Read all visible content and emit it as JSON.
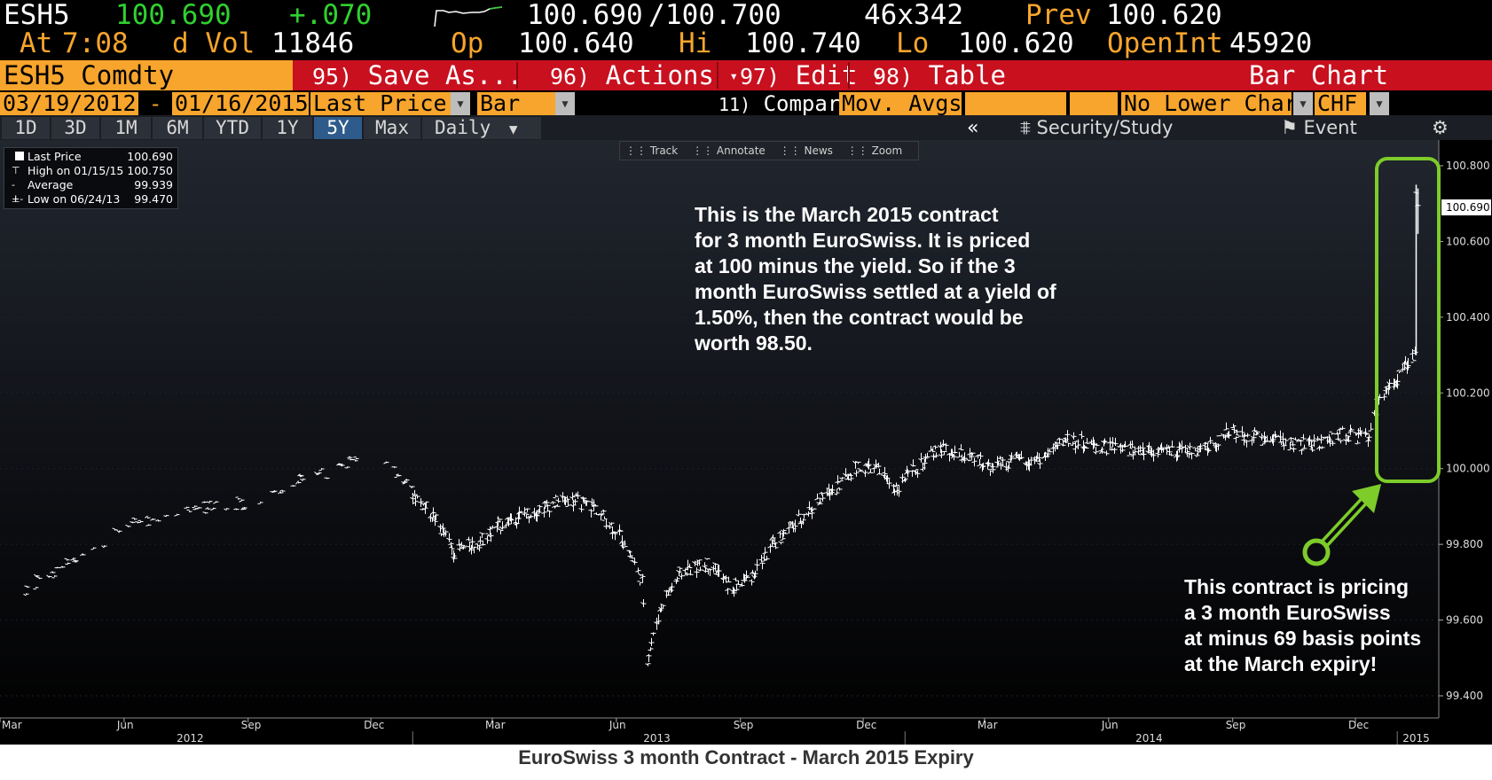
{
  "header": {
    "ticker": "ESH5",
    "last": "100.690",
    "change": "+.070",
    "bid": "100.690",
    "ask_sep": "/",
    "ask": "100.700",
    "size": "46x342",
    "prev_label": "Prev",
    "prev": "100.620",
    "at_label": "At",
    "time": "7:08",
    "dvol_label": "d Vol",
    "dvol": "11846",
    "open_label": "Op",
    "open": "100.640",
    "high_label": "Hi",
    "high": "100.740",
    "low_label": "Lo",
    "low": "100.620",
    "oi_label": "OpenInt",
    "oi": "45920"
  },
  "function_bar": {
    "security": "ESH5 Comdty",
    "save_num": "95)",
    "save_label": "Save As...",
    "actions_num": "96)",
    "actions_label": "Actions",
    "edit_num": "97)",
    "edit_label": "Edit",
    "table_num": "98)",
    "table_label": "Table",
    "mode_title": "Bar Chart"
  },
  "settings": {
    "start_date": "03/19/2012",
    "dash": "-",
    "end_date": "01/16/2015",
    "field": "Last Price",
    "style": "Bar",
    "compare_num": "11)",
    "compare_label": "Compare",
    "studies": "Mov. Avgs",
    "lower_chart": "No Lower Chart",
    "currency": "CHF"
  },
  "tabs": {
    "periods": [
      "1D",
      "3D",
      "1M",
      "6M",
      "YTD",
      "1Y",
      "5Y",
      "Max"
    ],
    "active": "5Y",
    "frequency": "Daily",
    "collapse": "«",
    "security_study": "Security/Study",
    "event": "Event",
    "gear_icon": "gear-icon"
  },
  "toolbar": {
    "track": "Track",
    "annotate": "Annotate",
    "news": "News",
    "zoom": "Zoom"
  },
  "legend": {
    "rows": [
      {
        "label": "Last Price",
        "value": "100.690"
      },
      {
        "label": "High on 01/15/15",
        "value": "100.750"
      },
      {
        "label": "Average",
        "value": "99.939"
      },
      {
        "label": "Low on 06/24/13",
        "value": "99.470"
      }
    ]
  },
  "annotations": {
    "description": "This is the March 2015 contract\nfor 3 month EuroSwiss.  It is priced\nat 100 minus the yield.  So if the 3\nmonth EuroSwiss settled at a yield of\n1.50%, then the contract would be\nworth 98.50.",
    "callout": "This contract is pricing\na 3 month EuroSwiss\nat minus 69 basis points\nat the March expiry!",
    "highlight_color": "#7dcc2a",
    "last_price_tag": "100.690"
  },
  "caption": "EuroSwiss 3 month Contract - March 2015 Expiry",
  "colors": {
    "amber": "#f7a52c",
    "red_bar": "#c8101f",
    "up_green": "#2fd12f",
    "active_tab": "#2e5b8c",
    "price_bars": "#ffffff"
  },
  "chart_data": {
    "type": "bar",
    "title": "EuroSwiss 3 month Contract - March 2015 Expiry",
    "ylim": [
      99.35,
      100.85
    ],
    "y_ticks": [
      "99.400",
      "99.600",
      "99.800",
      "100.000",
      "100.200",
      "100.400",
      "100.600",
      "100.800"
    ],
    "x_month_labels": [
      "Mar",
      "Jun",
      "Sep",
      "Dec",
      "Mar",
      "Jun",
      "Sep",
      "Dec",
      "Mar",
      "Jun",
      "Sep",
      "Dec"
    ],
    "x_month_dates": [
      "2012-03",
      "2012-06",
      "2012-09",
      "2012-12",
      "2013-03",
      "2013-06",
      "2013-09",
      "2013-12",
      "2014-03",
      "2014-06",
      "2014-09",
      "2014-12"
    ],
    "x_year_labels": [
      "2012",
      "2013",
      "2014",
      "2015"
    ],
    "x_range": [
      "2012-03-01",
      "2015-01-16"
    ],
    "series": [
      {
        "values": [
          [
            "2012-03-19",
            99.68
          ],
          [
            "2012-04-15",
            99.74
          ],
          [
            "2012-05-10",
            99.78
          ],
          [
            "2012-05-25",
            99.84
          ],
          [
            "2012-06-15",
            99.86
          ],
          [
            "2012-07-10",
            99.88
          ],
          [
            "2012-08-05",
            99.9
          ],
          [
            "2012-09-01",
            99.91
          ],
          [
            "2012-09-25",
            99.95
          ],
          [
            "2012-10-20",
            99.98
          ],
          [
            "2012-11-20",
            100.02
          ],
          [
            "2012-12-05",
            100.07
          ],
          [
            "2012-12-20",
            99.98
          ],
          [
            "2013-01-15",
            99.88
          ],
          [
            "2013-02-01",
            99.78
          ],
          [
            "2013-02-20",
            99.81
          ],
          [
            "2013-03-10",
            99.86
          ],
          [
            "2013-04-01",
            99.89
          ],
          [
            "2013-04-25",
            99.92
          ],
          [
            "2013-05-15",
            99.9
          ],
          [
            "2013-06-05",
            99.82
          ],
          [
            "2013-06-20",
            99.7
          ],
          [
            "2013-06-24",
            99.5
          ],
          [
            "2013-07-05",
            99.65
          ],
          [
            "2013-07-20",
            99.73
          ],
          [
            "2013-08-10",
            99.75
          ],
          [
            "2013-08-25",
            99.68
          ],
          [
            "2013-09-10",
            99.72
          ],
          [
            "2013-09-25",
            99.8
          ],
          [
            "2013-10-10",
            99.85
          ],
          [
            "2013-10-25",
            99.9
          ],
          [
            "2013-11-10",
            99.95
          ],
          [
            "2013-11-25",
            100.0
          ],
          [
            "2013-12-10",
            100.0
          ],
          [
            "2013-12-25",
            99.95
          ],
          [
            "2014-01-10",
            100.0
          ],
          [
            "2014-01-25",
            100.05
          ],
          [
            "2014-02-15",
            100.03
          ],
          [
            "2014-03-05",
            100.01
          ],
          [
            "2014-03-25",
            100.02
          ],
          [
            "2014-04-15",
            100.03
          ],
          [
            "2014-04-30",
            100.08
          ],
          [
            "2014-05-20",
            100.06
          ],
          [
            "2014-06-15",
            100.05
          ],
          [
            "2014-07-05",
            100.05
          ],
          [
            "2014-07-25",
            100.04
          ],
          [
            "2014-08-15",
            100.06
          ],
          [
            "2014-09-01",
            100.1
          ],
          [
            "2014-09-20",
            100.08
          ],
          [
            "2014-10-10",
            100.07
          ],
          [
            "2014-10-30",
            100.06
          ],
          [
            "2014-11-20",
            100.09
          ],
          [
            "2014-12-10",
            100.08
          ],
          [
            "2014-12-18",
            100.18
          ],
          [
            "2014-12-28",
            100.22
          ],
          [
            "2015-01-08",
            100.28
          ],
          [
            "2015-01-14",
            100.3
          ],
          [
            "2015-01-15",
            100.73
          ],
          [
            "2015-01-16",
            100.69
          ]
        ]
      }
    ]
  }
}
